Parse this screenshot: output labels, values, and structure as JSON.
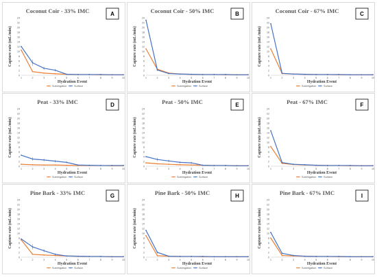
{
  "legend": [
    "Subirrigation",
    "Surface"
  ],
  "colors": {
    "Subirrigation": "#ed7d31",
    "Surface": "#4472c4",
    "axis": "#d9d9d9",
    "errorbar": "#7f7f7f"
  },
  "chart_data": [
    {
      "type": "line",
      "letter": "A",
      "title": "Coconut Coir - 33% IMC",
      "xlabel": "Hydration Event",
      "ylabel": "Capture rate (mL/min)",
      "x": [
        1,
        2,
        3,
        4,
        5,
        6,
        7,
        8,
        9,
        10
      ],
      "ylim": [
        0,
        24
      ],
      "yticks": [
        0,
        2,
        4,
        6,
        8,
        10,
        12,
        14,
        16,
        18,
        20,
        22,
        24
      ],
      "series": [
        {
          "name": "Subirrigation",
          "values": [
            10.5,
            1.5,
            0.9,
            0.6,
            0.4,
            0.3,
            0.3,
            0.2,
            0.2,
            0.2
          ]
        },
        {
          "name": "Surface",
          "values": [
            12,
            5.2,
            2.9,
            2.1,
            0.4,
            0.3,
            0.3,
            0.3,
            0.2,
            0.2
          ]
        }
      ]
    },
    {
      "type": "line",
      "letter": "B",
      "title": "Coconut Coir - 50% IMC",
      "xlabel": "Hydration Event",
      "ylabel": "Capture rate (mL/min)",
      "x": [
        1,
        2,
        3,
        4,
        5,
        6,
        7,
        8,
        9,
        10
      ],
      "ylim": [
        0,
        24
      ],
      "yticks": [
        0,
        2,
        4,
        6,
        8,
        10,
        12,
        14,
        16,
        18,
        20,
        22,
        24
      ],
      "series": [
        {
          "name": "Subirrigation",
          "values": [
            11,
            2.5,
            0.9,
            0.5,
            0.4,
            0.3,
            0.3,
            0.2,
            0.2,
            0.2
          ]
        },
        {
          "name": "Surface",
          "values": [
            23,
            2.2,
            0.7,
            0.5,
            0.4,
            0.3,
            0.3,
            0.3,
            0.2,
            0.2
          ]
        }
      ]
    },
    {
      "type": "line",
      "letter": "C",
      "title": "Coconut Coir - 67% IMC",
      "xlabel": "Hydration Event",
      "ylabel": "Capture rate (mL/min)",
      "x": [
        1,
        2,
        3,
        4,
        5,
        6,
        7,
        8,
        9,
        10
      ],
      "ylim": [
        0,
        24
      ],
      "yticks": [
        0,
        2,
        4,
        6,
        8,
        10,
        12,
        14,
        16,
        18,
        20,
        22,
        24
      ],
      "series": [
        {
          "name": "Subirrigation",
          "values": [
            11,
            0.7,
            0.5,
            0.4,
            0.3,
            0.3,
            0.2,
            0.2,
            0.2,
            0.2
          ]
        },
        {
          "name": "Surface",
          "values": [
            21.5,
            0.8,
            0.5,
            0.4,
            0.3,
            0.3,
            0.3,
            0.2,
            0.2,
            0.2
          ]
        }
      ]
    },
    {
      "type": "line",
      "letter": "D",
      "title": "Peat - 33% IMC",
      "xlabel": "Hydration Event",
      "ylabel": "Capture rate (mL/min)",
      "x": [
        1,
        2,
        3,
        4,
        5,
        6,
        7,
        8,
        9,
        10
      ],
      "ylim": [
        0,
        24
      ],
      "yticks": [
        0,
        2,
        4,
        6,
        8,
        10,
        12,
        14,
        16,
        18,
        20,
        22,
        24
      ],
      "series": [
        {
          "name": "Subirrigation",
          "values": [
            0.8,
            0.6,
            0.5,
            0.5,
            0.4,
            0.3,
            0.3,
            0.3,
            0.2,
            0.2
          ]
        },
        {
          "name": "Surface",
          "values": [
            4.6,
            3.0,
            2.6,
            2.1,
            1.6,
            0.5,
            0.4,
            0.3,
            0.3,
            0.3
          ]
        }
      ]
    },
    {
      "type": "line",
      "letter": "E",
      "title": "Peat - 50% IMC",
      "xlabel": "Hydration Event",
      "ylabel": "Capture rate (mL/min)",
      "x": [
        1,
        2,
        3,
        4,
        5,
        6,
        7,
        8,
        9,
        10
      ],
      "ylim": [
        0,
        24
      ],
      "yticks": [
        0,
        2,
        4,
        6,
        8,
        10,
        12,
        14,
        16,
        18,
        20,
        22,
        24
      ],
      "series": [
        {
          "name": "Subirrigation",
          "values": [
            1.4,
            1.0,
            0.8,
            0.6,
            0.5,
            0.4,
            0.3,
            0.3,
            0.2,
            0.2
          ]
        },
        {
          "name": "Surface",
          "values": [
            4.0,
            2.8,
            2.2,
            1.6,
            1.4,
            0.4,
            0.3,
            0.3,
            0.2,
            0.2
          ]
        }
      ]
    },
    {
      "type": "line",
      "letter": "F",
      "title": "Peat - 67% IMC",
      "xlabel": "Hydration Event",
      "ylabel": "Capture rate (mL/min)",
      "x": [
        1,
        2,
        3,
        4,
        5,
        6,
        7,
        8,
        9,
        10
      ],
      "ylim": [
        0,
        24
      ],
      "yticks": [
        0,
        2,
        4,
        6,
        8,
        10,
        12,
        14,
        16,
        18,
        20,
        22,
        24
      ],
      "series": [
        {
          "name": "Subirrigation",
          "values": [
            8.2,
            1.2,
            0.7,
            0.5,
            0.4,
            0.3,
            0.3,
            0.2,
            0.2,
            0.2
          ]
        },
        {
          "name": "Surface",
          "values": [
            14.8,
            1.5,
            0.8,
            0.6,
            0.4,
            0.3,
            0.3,
            0.3,
            0.2,
            0.2
          ]
        }
      ]
    },
    {
      "type": "line",
      "letter": "G",
      "title": "Pine Bark - 33% IMC",
      "xlabel": "Hydration Event",
      "ylabel": "Capture rate (mL/min)",
      "x": [
        1,
        2,
        3,
        4,
        5,
        6,
        7,
        8,
        9,
        10
      ],
      "ylim": [
        0,
        24
      ],
      "yticks": [
        0,
        2,
        4,
        6,
        8,
        10,
        12,
        14,
        16,
        18,
        20,
        22,
        24
      ],
      "series": [
        {
          "name": "Subirrigation",
          "values": [
            7.2,
            1.2,
            0.9,
            0.7,
            0.5,
            0.4,
            0.3,
            0.3,
            0.2,
            0.2
          ]
        },
        {
          "name": "Surface",
          "values": [
            7.6,
            4.3,
            2.7,
            1.2,
            0.5,
            0.4,
            0.3,
            0.3,
            0.2,
            0.2
          ]
        }
      ]
    },
    {
      "type": "line",
      "letter": "H",
      "title": "Pine Bark - 50% IMC",
      "xlabel": "Hydration Event",
      "ylabel": "Capture rate (mL/min)",
      "x": [
        1,
        2,
        3,
        4,
        5,
        6,
        7,
        8,
        9,
        10
      ],
      "ylim": [
        0,
        24
      ],
      "yticks": [
        0,
        2,
        4,
        6,
        8,
        10,
        12,
        14,
        16,
        18,
        20,
        22,
        24
      ],
      "series": [
        {
          "name": "Subirrigation",
          "values": [
            9.0,
            0.6,
            0.4,
            0.3,
            0.3,
            0.2,
            0.2,
            0.2,
            0.2,
            0.2
          ]
        },
        {
          "name": "Surface",
          "values": [
            11.2,
            2.0,
            0.4,
            0.3,
            0.3,
            0.3,
            0.2,
            0.2,
            0.2,
            0.2
          ]
        }
      ]
    },
    {
      "type": "line",
      "letter": "I",
      "title": "Pine Bark - 67% IMC",
      "xlabel": "Hydration Event",
      "ylabel": "Capture rate (mL/min)",
      "x": [
        1,
        2,
        3,
        4,
        5,
        6,
        7,
        8,
        9,
        10
      ],
      "ylim": [
        0,
        24
      ],
      "yticks": [
        0,
        2,
        4,
        6,
        8,
        10,
        12,
        14,
        16,
        18,
        20,
        22,
        24
      ],
      "series": [
        {
          "name": "Subirrigation",
          "values": [
            8.0,
            0.7,
            0.5,
            0.4,
            0.3,
            0.3,
            0.2,
            0.2,
            0.2,
            0.2
          ]
        },
        {
          "name": "Surface",
          "values": [
            10.3,
            1.6,
            0.7,
            0.4,
            0.3,
            0.3,
            0.3,
            0.2,
            0.2,
            0.2
          ]
        }
      ]
    }
  ]
}
